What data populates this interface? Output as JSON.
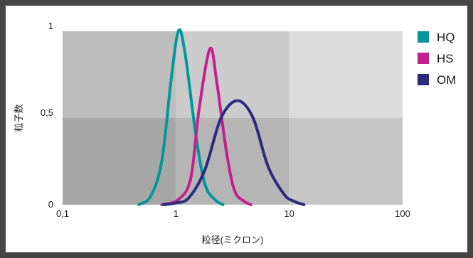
{
  "chart_data": {
    "type": "line",
    "title": "",
    "xlabel": "粒径(ミクロン)",
    "ylabel": "粒子数",
    "x_scale": "log",
    "xlim": [
      0.1,
      100
    ],
    "ylim": [
      0,
      1
    ],
    "x_ticks": [
      "0,1",
      "1",
      "10",
      "100"
    ],
    "y_ticks": [
      "0",
      "0,5",
      "1"
    ],
    "legend_position": "right",
    "series": [
      {
        "name": "HQ",
        "color": "#00969c",
        "points": [
          [
            0.47,
            0.0
          ],
          [
            0.6,
            0.05
          ],
          [
            0.75,
            0.25
          ],
          [
            0.9,
            0.7
          ],
          [
            1.05,
            1.0
          ],
          [
            1.2,
            0.88
          ],
          [
            1.5,
            0.4
          ],
          [
            1.8,
            0.12
          ],
          [
            2.2,
            0.03
          ],
          [
            2.6,
            0.0
          ]
        ]
      },
      {
        "name": "HS",
        "color": "#c2208f",
        "points": [
          [
            0.75,
            0.0
          ],
          [
            1.05,
            0.03
          ],
          [
            1.35,
            0.15
          ],
          [
            1.6,
            0.55
          ],
          [
            2.0,
            0.9
          ],
          [
            2.3,
            0.7
          ],
          [
            2.8,
            0.3
          ],
          [
            3.3,
            0.08
          ],
          [
            4.0,
            0.02
          ],
          [
            4.6,
            0.0
          ]
        ]
      },
      {
        "name": "OM",
        "color": "#2b2a7e",
        "points": [
          [
            0.78,
            0.0
          ],
          [
            1.0,
            0.01
          ],
          [
            1.3,
            0.04
          ],
          [
            1.8,
            0.2
          ],
          [
            2.5,
            0.5
          ],
          [
            3.5,
            0.6
          ],
          [
            4.8,
            0.5
          ],
          [
            6.5,
            0.22
          ],
          [
            9.0,
            0.06
          ],
          [
            11.0,
            0.02
          ],
          [
            13.5,
            0.0
          ]
        ]
      }
    ]
  }
}
